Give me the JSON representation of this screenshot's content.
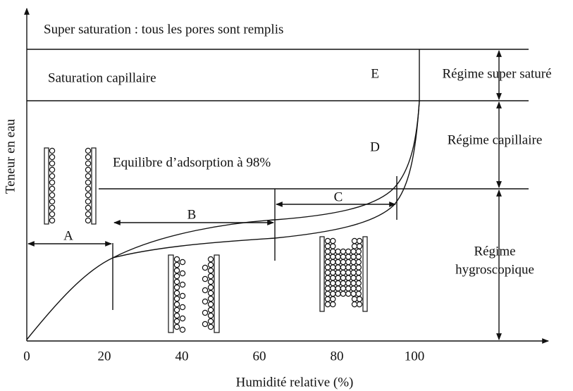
{
  "labels": {
    "super_saturation": "Super saturation : tous les pores sont remplis",
    "capillary_saturation": "Saturation capillaire",
    "equilibrium": "Equilibre d’adsorption à 98%",
    "zone_a": "A",
    "zone_b": "B",
    "zone_c": "C",
    "zone_d": "D",
    "zone_e": "E"
  },
  "regimes": {
    "super_saturated": "Régime super saturé",
    "capillary": "Régime capillaire",
    "hygroscopic_1": "Régime",
    "hygroscopic_2": "hygroscopique"
  },
  "axes": {
    "x_label": "Humidité relative (%)",
    "y_label": "Teneur en eau",
    "x_ticks": [
      "0",
      "20",
      "40",
      "60",
      "80",
      "100"
    ]
  }
}
